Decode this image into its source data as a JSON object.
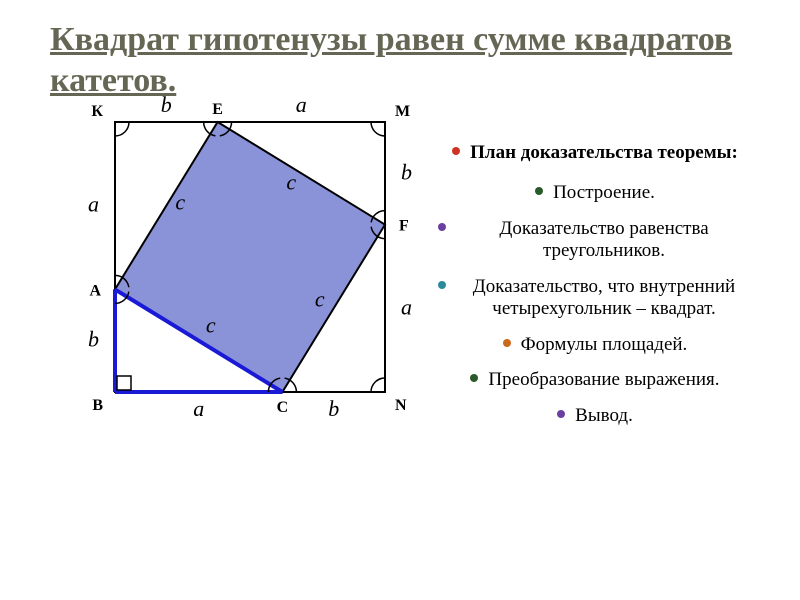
{
  "title": "Квадрат гипотенузы равен сумме квадратов катетов.",
  "plan_heading": "План доказательства теоремы:",
  "plan_items": [
    "Построение.",
    "Доказательство равенства треугольников.",
    "Доказательство, что внутренний четырехугольник – квадрат.",
    "Формулы площадей.",
    "Преобразование выражения.",
    "Вывод."
  ],
  "bullet_colors": [
    "#cc3322",
    "#2a5a2a",
    "#6a3fa0",
    "#2a8a9a",
    "#c96a1a",
    "#2a5a2a",
    "#6a3fa0"
  ],
  "diagram": {
    "unit": 100,
    "a_ratio": 0.62,
    "b_ratio": 0.38,
    "outer_stroke": "#000000",
    "outer_fill": "#ffffff",
    "inner_fill": "#8a92d8",
    "inner_stroke": "#000000",
    "blue_line": "#1a1ad6",
    "blue_width": 4,
    "font_family": "serif",
    "font_size": 22,
    "point_font": 16,
    "points": {
      "K": "К",
      "E": "E",
      "M": "М",
      "A": "A",
      "F": "F",
      "B": "В",
      "C": "C",
      "N": "N"
    },
    "sides": {
      "a": "a",
      "b": "b",
      "c": "c"
    },
    "angle_arc_r": 14
  }
}
